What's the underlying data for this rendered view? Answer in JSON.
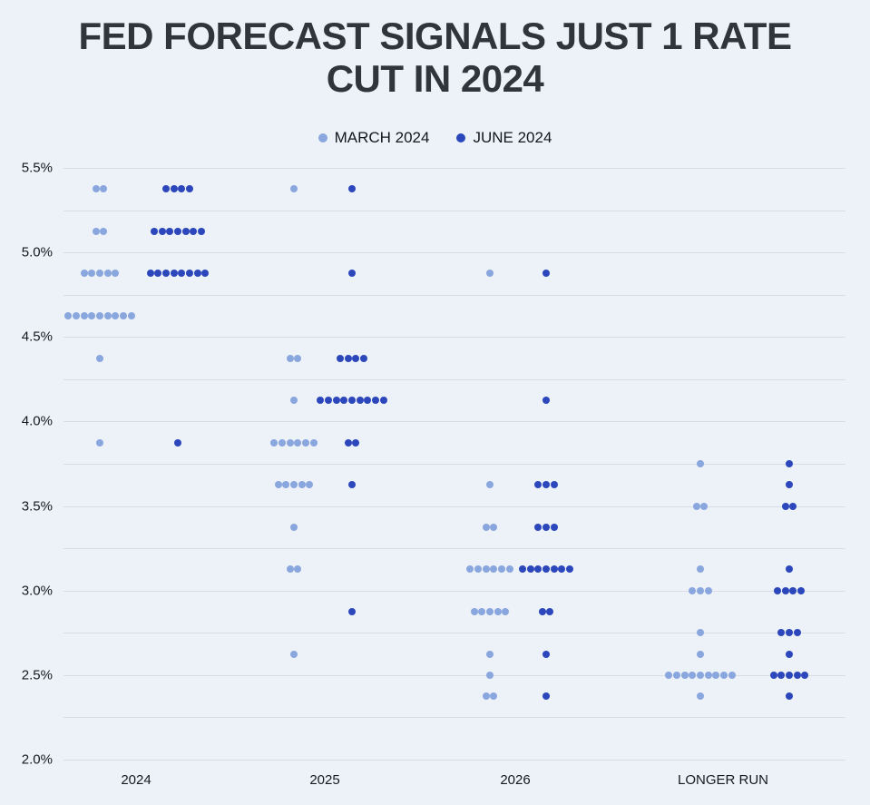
{
  "chart_data": {
    "type": "scatter",
    "title": "FED FORECAST SIGNALS JUST 1 RATE CUT IN 2024",
    "title_lines": [
      "FED FORECAST SIGNALS JUST 1 RATE",
      "CUT IN 2024"
    ],
    "legend": [
      {
        "label": "MARCH 2024",
        "color": "#89a7de"
      },
      {
        "label": "JUNE 2024",
        "color": "#2b47bb"
      }
    ],
    "y_axis": {
      "min": 2.0,
      "max": 5.5,
      "grid_step": 0.25,
      "label_step": 0.5,
      "tick_labels": [
        "5.5%",
        "5.0%",
        "4.5%",
        "4.0%",
        "3.5%",
        "3.0%",
        "2.5%",
        "2.0%"
      ],
      "unit": "%"
    },
    "x_axis": {
      "labels": [
        "2024",
        "2025",
        "2026",
        "LONGER RUN"
      ]
    },
    "grid": true,
    "legend_position": "top",
    "series_names": [
      "MARCH 2024",
      "JUNE 2024"
    ],
    "columns": [
      {
        "label": "2024",
        "march": [
          {
            "rate": 5.375,
            "count": 2
          },
          {
            "rate": 5.125,
            "count": 2
          },
          {
            "rate": 4.875,
            "count": 5
          },
          {
            "rate": 4.625,
            "count": 9
          },
          {
            "rate": 4.375,
            "count": 1
          },
          {
            "rate": 3.875,
            "count": 1
          }
        ],
        "june": [
          {
            "rate": 5.375,
            "count": 4
          },
          {
            "rate": 5.125,
            "count": 7
          },
          {
            "rate": 4.875,
            "count": 8
          },
          {
            "rate": 3.875,
            "count": 1
          }
        ]
      },
      {
        "label": "2025",
        "march": [
          {
            "rate": 5.375,
            "count": 1
          },
          {
            "rate": 4.375,
            "count": 2
          },
          {
            "rate": 4.125,
            "count": 1
          },
          {
            "rate": 3.875,
            "count": 6
          },
          {
            "rate": 3.625,
            "count": 5
          },
          {
            "rate": 3.375,
            "count": 1
          },
          {
            "rate": 3.125,
            "count": 2
          },
          {
            "rate": 2.625,
            "count": 1
          }
        ],
        "june": [
          {
            "rate": 5.375,
            "count": 1
          },
          {
            "rate": 4.875,
            "count": 1
          },
          {
            "rate": 4.375,
            "count": 4
          },
          {
            "rate": 4.125,
            "count": 9
          },
          {
            "rate": 3.875,
            "count": 2
          },
          {
            "rate": 3.625,
            "count": 1
          },
          {
            "rate": 2.875,
            "count": 1
          }
        ]
      },
      {
        "label": "2026",
        "march": [
          {
            "rate": 4.875,
            "count": 1
          },
          {
            "rate": 3.625,
            "count": 1
          },
          {
            "rate": 3.375,
            "count": 2
          },
          {
            "rate": 3.125,
            "count": 6
          },
          {
            "rate": 2.875,
            "count": 5
          },
          {
            "rate": 2.625,
            "count": 1
          },
          {
            "rate": 2.5,
            "count": 1
          },
          {
            "rate": 2.375,
            "count": 2
          }
        ],
        "june": [
          {
            "rate": 4.875,
            "count": 1
          },
          {
            "rate": 4.125,
            "count": 1
          },
          {
            "rate": 3.625,
            "count": 3
          },
          {
            "rate": 3.375,
            "count": 3
          },
          {
            "rate": 3.125,
            "count": 7
          },
          {
            "rate": 2.875,
            "count": 2
          },
          {
            "rate": 2.625,
            "count": 1
          },
          {
            "rate": 2.375,
            "count": 1
          }
        ]
      },
      {
        "label": "LONGER RUN",
        "march": [
          {
            "rate": 3.75,
            "count": 1
          },
          {
            "rate": 3.5,
            "count": 2
          },
          {
            "rate": 3.125,
            "count": 1
          },
          {
            "rate": 3.0,
            "count": 3
          },
          {
            "rate": 2.75,
            "count": 1
          },
          {
            "rate": 2.625,
            "count": 1
          },
          {
            "rate": 2.5,
            "count": 9
          },
          {
            "rate": 2.375,
            "count": 1
          }
        ],
        "june": [
          {
            "rate": 3.75,
            "count": 1
          },
          {
            "rate": 3.625,
            "count": 1
          },
          {
            "rate": 3.5,
            "count": 2
          },
          {
            "rate": 3.125,
            "count": 1
          },
          {
            "rate": 3.0,
            "count": 4
          },
          {
            "rate": 2.75,
            "count": 3
          },
          {
            "rate": 2.625,
            "count": 1
          },
          {
            "rate": 2.5,
            "count": 5
          },
          {
            "rate": 2.375,
            "count": 1
          }
        ]
      }
    ]
  },
  "colors": {
    "background": "#edf1f8",
    "title": "#30353b",
    "march_dot": "#89a7de",
    "june_dot": "#2b47bb",
    "gridline": "#d8dde4",
    "axis_text": "#16191d"
  }
}
